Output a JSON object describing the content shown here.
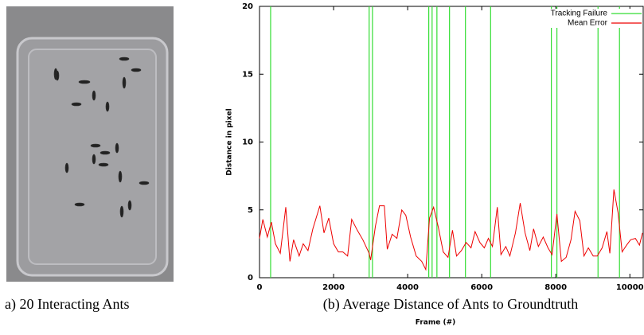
{
  "figure": {
    "captions": [
      "a) 20 Interacting Ants",
      "(b) Average Distance of Ants to Groundtruth"
    ]
  },
  "chart_data": {
    "type": "line",
    "xlabel": "Frame (#)",
    "ylabel": "Distance in pixel",
    "xlim": [
      0,
      10360
    ],
    "ylim": [
      0,
      20
    ],
    "xticks": [
      0,
      2000,
      4000,
      6000,
      8000,
      10000
    ],
    "yticks": [
      0,
      5,
      10,
      15,
      20
    ],
    "legend": "upper right",
    "series": [
      {
        "name": "Tracking Failure",
        "color": "#33dd33",
        "style": "vertical",
        "x": [
          300,
          2960,
          3050,
          4570,
          4660,
          4790,
          5130,
          5560,
          6240,
          7880,
          8030,
          9140,
          9720
        ]
      },
      {
        "name": "Mean Error",
        "color": "#ee0000",
        "x": [
          0,
          90,
          210,
          320,
          430,
          560,
          710,
          820,
          920,
          1070,
          1180,
          1310,
          1440,
          1630,
          1740,
          1870,
          2000,
          2130,
          2250,
          2380,
          2490,
          2640,
          2790,
          2960,
          3000,
          3130,
          3240,
          3370,
          3450,
          3580,
          3710,
          3840,
          3950,
          4080,
          4230,
          4380,
          4490,
          4590,
          4700,
          4830,
          4960,
          5090,
          5210,
          5320,
          5450,
          5580,
          5710,
          5820,
          5950,
          6070,
          6180,
          6290,
          6420,
          6520,
          6650,
          6760,
          6910,
          7040,
          7170,
          7300,
          7400,
          7530,
          7660,
          7790,
          7900,
          8030,
          8150,
          8280,
          8410,
          8520,
          8650,
          8760,
          8880,
          9010,
          9120,
          9250,
          9380,
          9460,
          9570,
          9680,
          9790,
          9910,
          10020,
          10150,
          10260,
          10340
        ],
        "values": [
          2.9,
          4.3,
          3.0,
          4.1,
          2.5,
          1.8,
          5.2,
          1.2,
          2.8,
          1.6,
          2.5,
          2.0,
          3.6,
          5.3,
          3.3,
          4.4,
          2.5,
          1.9,
          1.9,
          1.6,
          4.3,
          3.5,
          2.8,
          1.8,
          1.3,
          3.8,
          5.3,
          5.3,
          2.1,
          3.2,
          2.9,
          5.0,
          4.6,
          3.0,
          1.6,
          1.2,
          0.6,
          4.4,
          5.2,
          3.7,
          1.9,
          1.5,
          3.5,
          1.6,
          2.0,
          2.6,
          2.2,
          3.4,
          2.6,
          2.2,
          2.9,
          2.3,
          5.2,
          1.7,
          2.3,
          1.6,
          3.3,
          5.5,
          3.3,
          2.0,
          3.6,
          2.3,
          3.0,
          2.2,
          1.7,
          4.7,
          1.2,
          1.5,
          2.8,
          4.9,
          4.2,
          1.6,
          2.2,
          1.6,
          1.6,
          2.2,
          3.4,
          1.8,
          6.5,
          4.8,
          1.9,
          2.4,
          2.8,
          2.9,
          2.4,
          3.3
        ]
      }
    ]
  }
}
